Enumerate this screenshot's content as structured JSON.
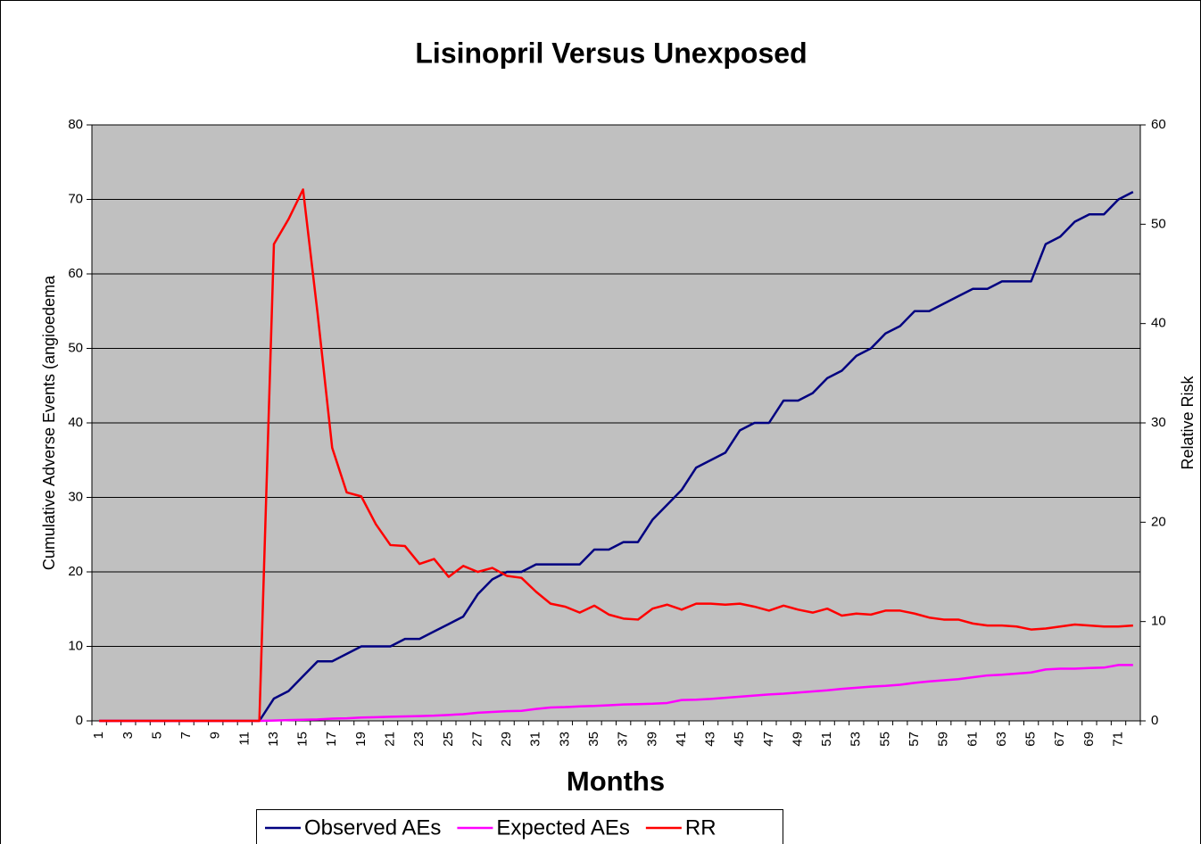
{
  "chart_data": {
    "type": "line",
    "title": "Lisinopril Versus Unexposed",
    "x_label": "Months",
    "y_label": "Cumulative Adverse Events (angioedema",
    "y2_label": "Relative Risk",
    "categories": [
      "1",
      null,
      "3",
      null,
      "5",
      null,
      "7",
      null,
      "9",
      null,
      "11",
      null,
      "13",
      null,
      "15",
      null,
      "17",
      null,
      "19",
      null,
      "21",
      null,
      "23",
      null,
      "25",
      null,
      "27",
      null,
      "29",
      null,
      "31",
      null,
      "33",
      null,
      "35",
      null,
      "37",
      null,
      "39",
      null,
      "41",
      null,
      "43",
      null,
      "45",
      null,
      "47",
      null,
      "49",
      null,
      "51",
      null,
      "53",
      null,
      "55",
      null,
      "57",
      null,
      "59",
      null,
      "61",
      null,
      "63",
      null,
      "65",
      null,
      "67",
      null,
      "69",
      null,
      "71",
      null
    ],
    "series": [
      {
        "name": "Observed AEs",
        "color": "#000080",
        "values": [
          0,
          0,
          0,
          0,
          0,
          0,
          0,
          0,
          0,
          0,
          0,
          0,
          3,
          4,
          6,
          8,
          8,
          9,
          10,
          10,
          10,
          11,
          11,
          12,
          13,
          14,
          17,
          19,
          20,
          20,
          21,
          21,
          21,
          21,
          23,
          23,
          24,
          24,
          27,
          29,
          31,
          34,
          35,
          36,
          39,
          40,
          40,
          43,
          43,
          44,
          46,
          47,
          49,
          50,
          52,
          53,
          55,
          55,
          56,
          57,
          58,
          58,
          59,
          59,
          59,
          64,
          65,
          67,
          68,
          68,
          70,
          71
        ]
      },
      {
        "name": "Expected AEs",
        "color": "#ff00ff",
        "values": [
          0,
          0,
          0,
          0,
          0,
          0,
          0,
          0,
          0,
          0,
          0,
          0,
          0.05,
          0.1,
          0.15,
          0.2,
          0.3,
          0.35,
          0.45,
          0.5,
          0.55,
          0.6,
          0.65,
          0.7,
          0.8,
          0.9,
          1.1,
          1.2,
          1.3,
          1.35,
          1.6,
          1.8,
          1.85,
          1.95,
          2.0,
          2.1,
          2.2,
          2.25,
          2.3,
          2.4,
          2.8,
          2.85,
          2.95,
          3.1,
          3.25,
          3.4,
          3.55,
          3.65,
          3.8,
          3.95,
          4.1,
          4.3,
          4.45,
          4.6,
          4.7,
          4.85,
          5.1,
          5.3,
          5.45,
          5.6,
          5.85,
          6.1,
          6.2,
          6.35,
          6.5,
          6.9,
          7.0,
          7.0,
          7.1,
          7.15,
          7.5,
          7.5
        ]
      },
      {
        "name": "RR",
        "color": "#ff0000",
        "axis": "y2",
        "values": [
          0,
          0,
          0,
          0,
          0,
          0,
          0,
          0,
          0,
          0,
          0,
          0,
          48,
          50.5,
          53.5,
          41,
          27.5,
          23,
          22.6,
          19.8,
          17.7,
          17.6,
          15.8,
          16.3,
          14.5,
          15.6,
          15,
          15.4,
          14.6,
          14.4,
          13,
          11.8,
          11.5,
          10.9,
          11.6,
          10.7,
          10.3,
          10.2,
          11.3,
          11.7,
          11.2,
          11.8,
          11.8,
          11.7,
          11.8,
          11.5,
          11.1,
          11.6,
          11.2,
          10.9,
          11.3,
          10.6,
          10.8,
          10.7,
          11.1,
          11.1,
          10.8,
          10.4,
          10.2,
          10.2,
          9.8,
          9.6,
          9.6,
          9.5,
          9.2,
          9.3,
          9.5,
          9.7,
          9.6,
          9.5,
          9.5,
          9.6
        ]
      }
    ],
    "ylim": [
      0,
      80
    ],
    "yticks": [
      0,
      10,
      20,
      30,
      40,
      50,
      60,
      70,
      80
    ],
    "y2lim": [
      0,
      60
    ],
    "y2ticks": [
      0,
      10,
      20,
      30,
      40,
      50,
      60
    ],
    "grid": true,
    "legend": "bottom"
  }
}
